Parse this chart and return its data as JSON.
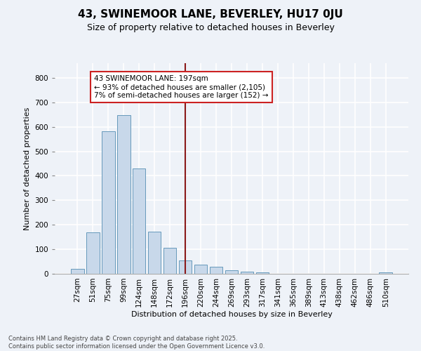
{
  "title1": "43, SWINEMOOR LANE, BEVERLEY, HU17 0JU",
  "title2": "Size of property relative to detached houses in Beverley",
  "xlabel": "Distribution of detached houses by size in Beverley",
  "ylabel": "Number of detached properties",
  "bar_labels": [
    "27sqm",
    "51sqm",
    "75sqm",
    "99sqm",
    "124sqm",
    "148sqm",
    "172sqm",
    "196sqm",
    "220sqm",
    "244sqm",
    "269sqm",
    "293sqm",
    "317sqm",
    "341sqm",
    "365sqm",
    "389sqm",
    "413sqm",
    "438sqm",
    "462sqm",
    "486sqm",
    "510sqm"
  ],
  "bar_values": [
    20,
    168,
    582,
    648,
    430,
    172,
    105,
    55,
    38,
    30,
    15,
    8,
    5,
    0,
    0,
    0,
    0,
    0,
    0,
    0,
    5
  ],
  "bar_color": "#c8d8ea",
  "bar_edgecolor": "#6699bb",
  "vline_x_index": 7,
  "vline_color": "#8b1a1a",
  "annotation_line1": "43 SWINEMOOR LANE: 197sqm",
  "annotation_line2": "← 93% of detached houses are smaller (2,105)",
  "annotation_line3": "7% of semi-detached houses are larger (152) →",
  "annotation_box_facecolor": "#ffffff",
  "annotation_box_edgecolor": "#cc2222",
  "ylim": [
    0,
    860
  ],
  "yticks": [
    0,
    100,
    200,
    300,
    400,
    500,
    600,
    700,
    800
  ],
  "footer_line1": "Contains HM Land Registry data © Crown copyright and database right 2025.",
  "footer_line2": "Contains public sector information licensed under the Open Government Licence v3.0.",
  "background_color": "#eef2f8",
  "grid_color": "#ffffff",
  "title1_fontsize": 11,
  "title2_fontsize": 9,
  "xlabel_fontsize": 8,
  "ylabel_fontsize": 8,
  "tick_fontsize": 7.5,
  "footer_fontsize": 6,
  "annotation_fontsize": 7.5
}
